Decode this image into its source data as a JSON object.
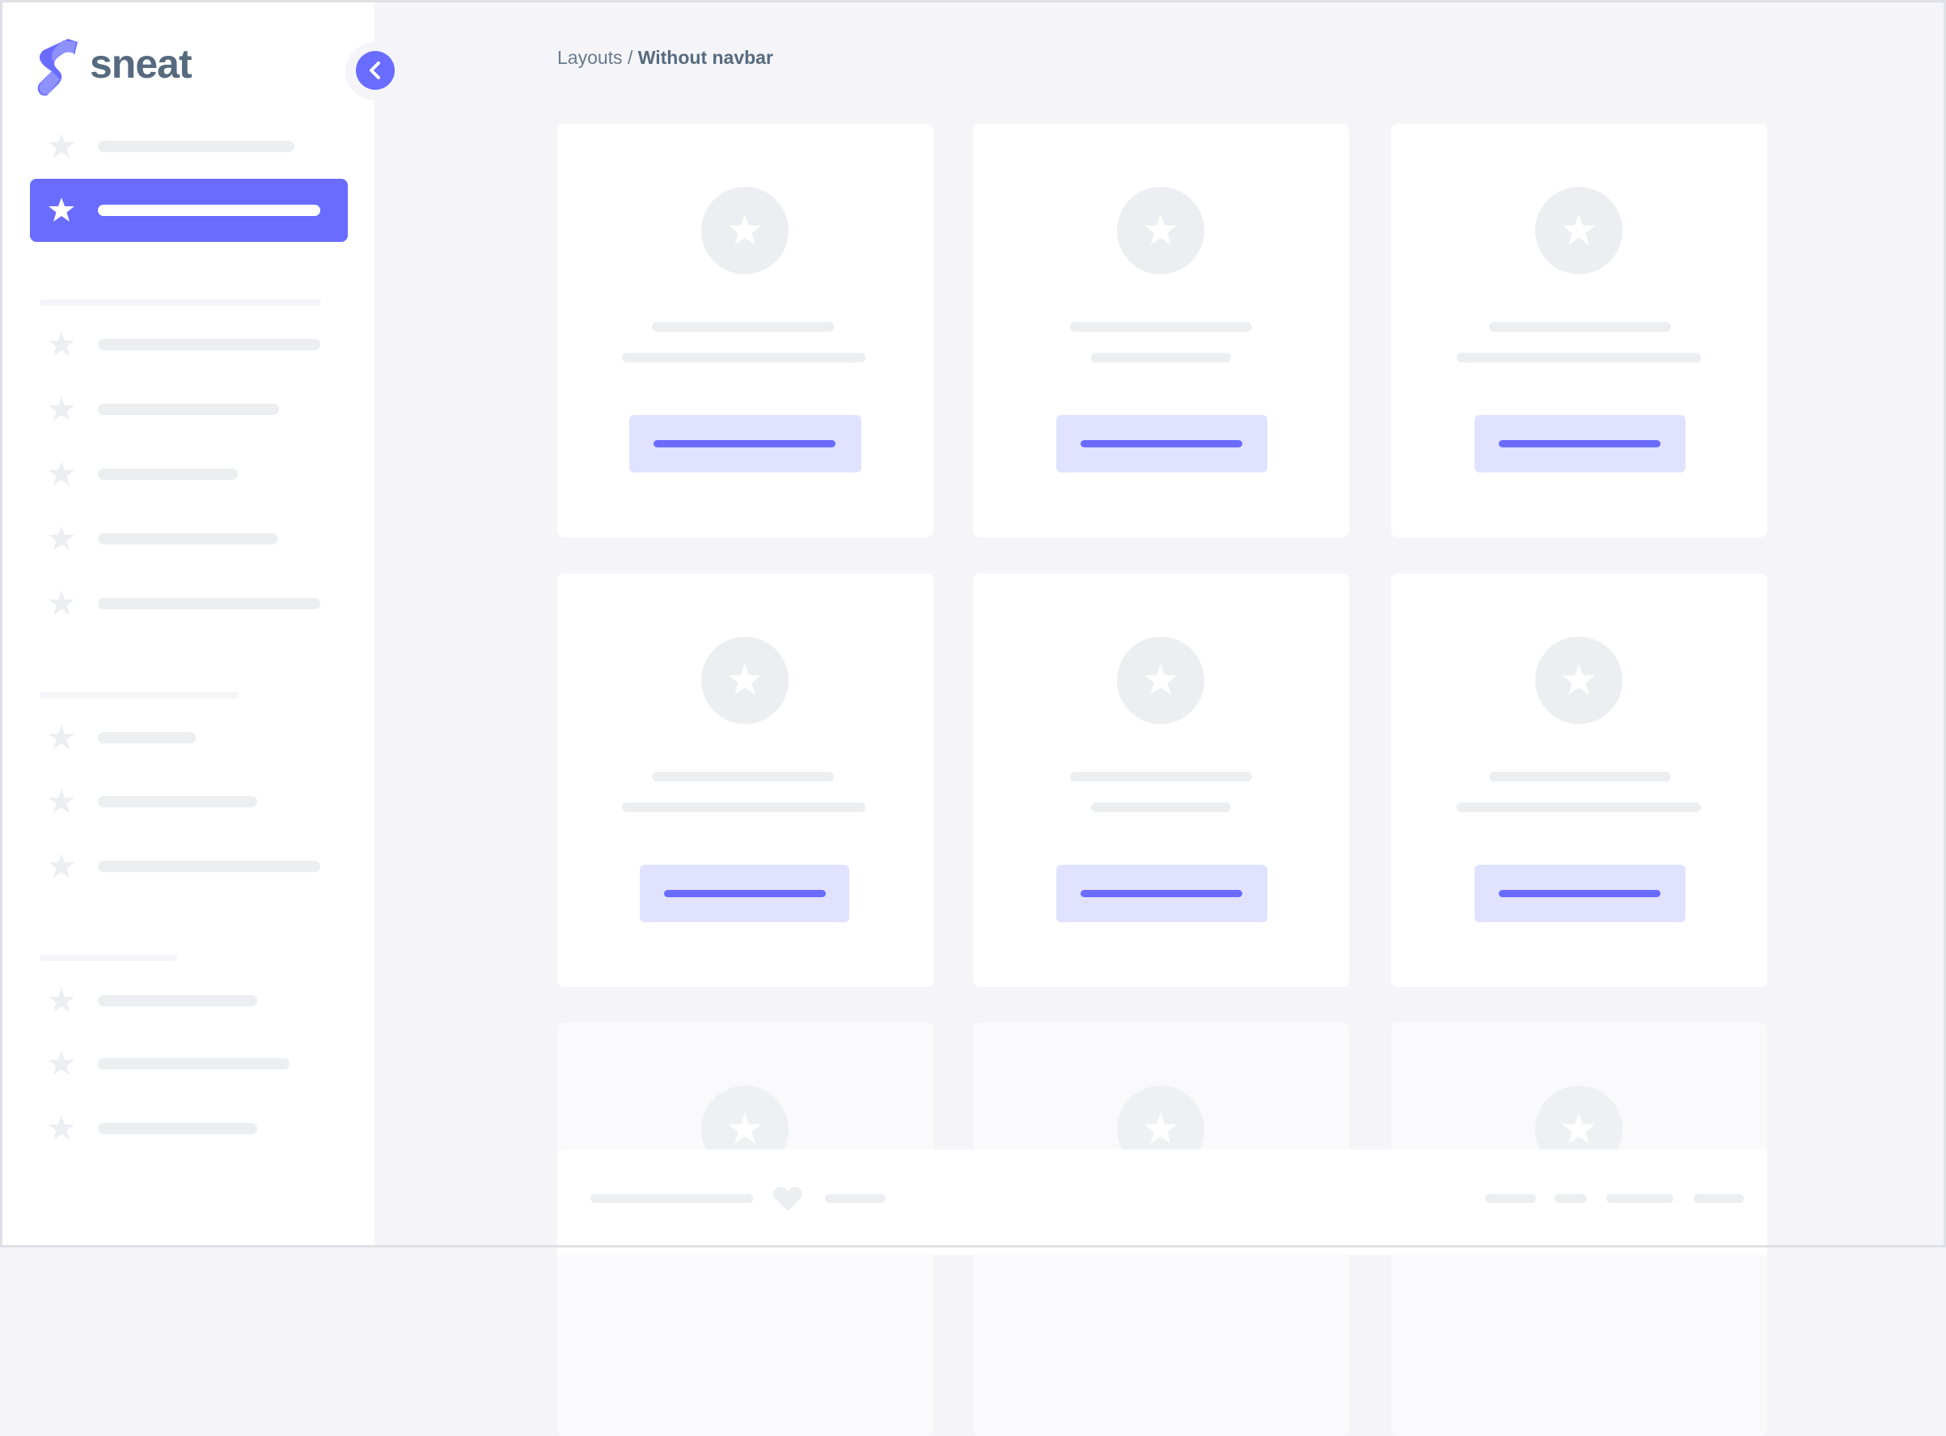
{
  "app": {
    "brand": "sneat"
  },
  "breadcrumb": {
    "parent": "Layouts",
    "separator": " / ",
    "current": "Without navbar"
  },
  "colors": {
    "primary": "#696cff",
    "primary_light": "#e1e2ff",
    "placeholder": "#eceef1",
    "background": "#f5f5f9",
    "brand_text": "#566a7f"
  },
  "sidebar": {
    "active_index": 1,
    "toggle_icon": "chevron-left-icon",
    "item_icon": "star-icon"
  },
  "footer": {
    "icon": "heart-icon"
  }
}
